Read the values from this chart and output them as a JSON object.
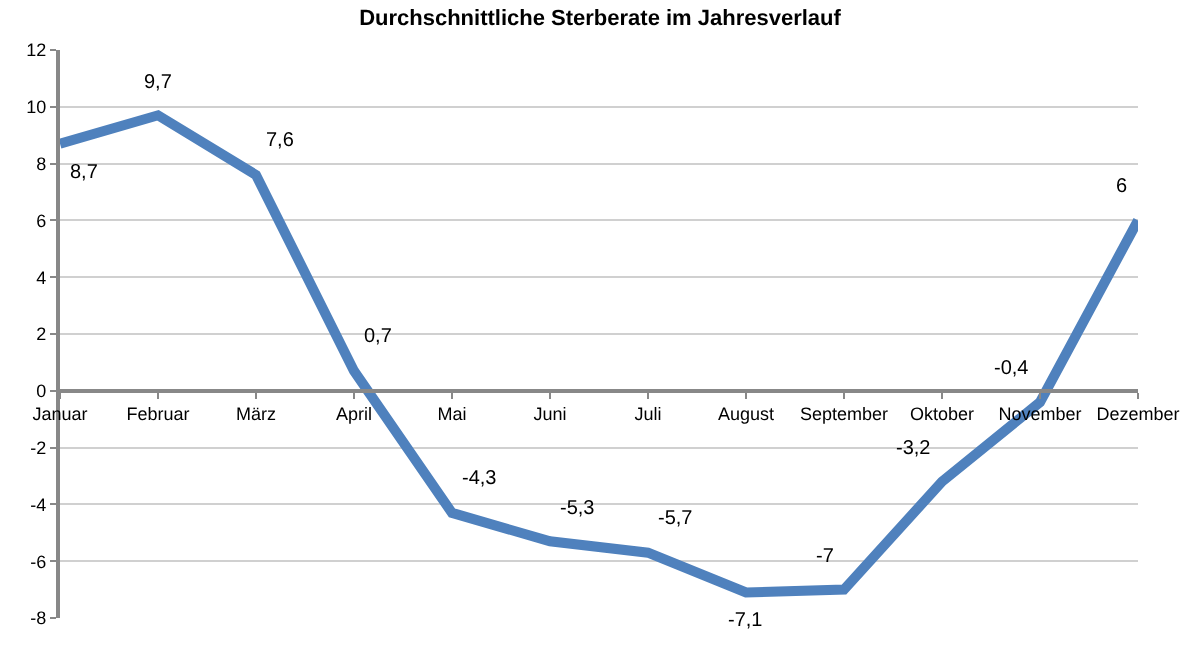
{
  "chart_data": {
    "type": "line",
    "title": "Durchschnittliche Sterberate im Jahresverlauf",
    "categories": [
      "Januar",
      "Februar",
      "März",
      "April",
      "Mai",
      "Juni",
      "Juli",
      "August",
      "September",
      "Oktober",
      "November",
      "Dezember"
    ],
    "series": [
      {
        "color": "#4f81bd",
        "values": [
          8.7,
          9.7,
          7.6,
          0.7,
          -4.3,
          -5.3,
          -5.7,
          -7.1,
          -7,
          -3.2,
          -0.4,
          6
        ],
        "value_labels": [
          "8,7",
          "9,7",
          "7,6",
          "0,7",
          "-4,3",
          "-5,3",
          "-5,7",
          "-7,1",
          "-7",
          "-3,2",
          "-0,4",
          "6"
        ]
      }
    ],
    "ylim": [
      -8,
      12
    ],
    "yticks": [
      -8,
      -6,
      -4,
      -2,
      0,
      2,
      4,
      6,
      8,
      10,
      12
    ],
    "grid": "y",
    "legend": false,
    "marker": "none",
    "line_style": "solid"
  }
}
